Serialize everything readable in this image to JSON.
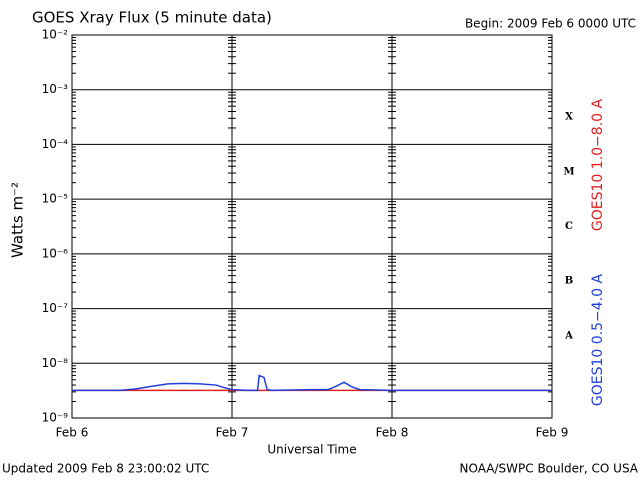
{
  "chart_data": {
    "type": "line",
    "title": "GOES Xray Flux (5 minute data)",
    "subtitle": "Begin:  2009 Feb 6 0000 UTC",
    "x_label": "Universal Time",
    "y_label": "Watts m⁻²",
    "footer_left": "Updated 2009 Feb  8 23:00:02 UTC",
    "footer_right": "NOAA/SWPC Boulder, CO USA",
    "flare_classes": [
      "A",
      "B",
      "C",
      "M",
      "X"
    ],
    "log_y": true,
    "grid": true,
    "xlim": [
      0,
      3
    ],
    "xticks": [
      {
        "value": 0,
        "label": "Feb 6"
      },
      {
        "value": 1,
        "label": "Feb 7"
      },
      {
        "value": 2,
        "label": "Feb 8"
      },
      {
        "value": 3,
        "label": "Feb 9"
      }
    ],
    "ylim": [
      1e-09,
      0.01
    ],
    "yticks": [
      {
        "value": 1e-09,
        "label": "10⁻⁹"
      },
      {
        "value": 1e-08,
        "label": "10⁻⁸"
      },
      {
        "value": 1e-07,
        "label": "10⁻⁷"
      },
      {
        "value": 1e-06,
        "label": "10⁻⁶"
      },
      {
        "value": 1e-05,
        "label": "10⁻⁵"
      },
      {
        "value": 0.0001,
        "label": "10⁻⁴"
      },
      {
        "value": 0.001,
        "label": "10⁻³"
      },
      {
        "value": 0.01,
        "label": "10⁻²"
      }
    ],
    "series": [
      {
        "name": "GOES10 1.0−8.0 A",
        "color": "#e02020",
        "x": [
          0,
          0.5,
          1,
          1.5,
          2,
          2.5,
          3
        ],
        "values": [
          3.2e-09,
          3.2e-09,
          3.2e-09,
          3.2e-09,
          3.2e-09,
          3.2e-09,
          3.2e-09
        ]
      },
      {
        "name": "GOES10 0.5−4.0 A",
        "color": "#1f3fd8",
        "x": [
          0,
          0.3,
          0.4,
          0.5,
          0.6,
          0.7,
          0.8,
          0.9,
          0.95,
          1.0,
          1.1,
          1.16,
          1.17,
          1.2,
          1.22,
          1.25,
          1.5,
          1.6,
          1.65,
          1.7,
          1.75,
          1.8,
          2,
          2.5,
          3
        ],
        "values": [
          3.2e-09,
          3.2e-09,
          3.4e-09,
          3.8e-09,
          4.2e-09,
          4.3e-09,
          4.2e-09,
          4e-09,
          3.6e-09,
          3.3e-09,
          3.2e-09,
          3.2e-09,
          6e-09,
          5.5e-09,
          3.3e-09,
          3.2e-09,
          3.3e-09,
          3.3e-09,
          3.8e-09,
          4.5e-09,
          3.7e-09,
          3.3e-09,
          3.2e-09,
          3.2e-09,
          3.2e-09
        ]
      }
    ]
  }
}
